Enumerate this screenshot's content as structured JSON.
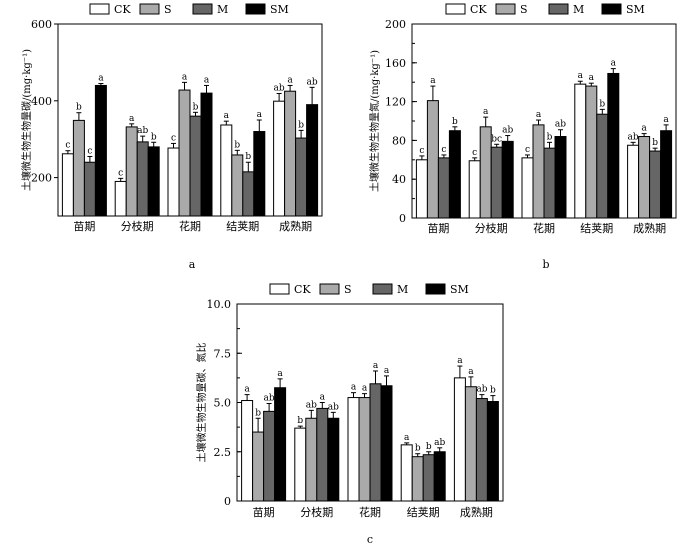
{
  "chart_data": [
    {
      "type": "bar",
      "panel_label": "a",
      "ylabel": "土壤微生物生物量碳/(mg·kg⁻¹)",
      "ylim": [
        100,
        600
      ],
      "yticks": [
        "200",
        "400",
        "600"
      ],
      "ytick_values": [
        200,
        400,
        600
      ],
      "categories": [
        "苗期",
        "分枝期",
        "花期",
        "结荚期",
        "成熟期"
      ],
      "series": [
        {
          "name": "CK",
          "color": "#ffffff",
          "values": [
            262,
            190,
            277,
            337,
            399
          ],
          "errors": [
            8,
            8,
            12,
            10,
            20
          ],
          "letters": [
            "c",
            "c",
            "c",
            "a",
            "ab"
          ]
        },
        {
          "name": "S",
          "color": "#aaaaaa",
          "values": [
            349,
            332,
            428,
            259,
            425
          ],
          "errors": [
            20,
            8,
            20,
            12,
            15
          ],
          "letters": [
            "b",
            "a",
            "a",
            "b",
            "a"
          ]
        },
        {
          "name": "M",
          "color": "#666666",
          "values": [
            240,
            293,
            360,
            215,
            303
          ],
          "errors": [
            15,
            15,
            10,
            25,
            20
          ],
          "letters": [
            "c",
            "ab",
            "b",
            "b",
            "b"
          ]
        },
        {
          "name": "SM",
          "color": "#000000",
          "values": [
            440,
            280,
            420,
            320,
            390
          ],
          "errors": [
            5,
            12,
            20,
            30,
            45
          ],
          "letters": [
            "a",
            "b",
            "a",
            "a",
            "ab"
          ]
        }
      ]
    },
    {
      "type": "bar",
      "panel_label": "b",
      "ylabel": "土壤微生物生物量氮/(mg·kg⁻¹)",
      "ylim": [
        0,
        200
      ],
      "yticks": [
        "0",
        "40",
        "80",
        "120",
        "160",
        "200"
      ],
      "ytick_values": [
        0,
        40,
        80,
        120,
        160,
        200
      ],
      "categories": [
        "苗期",
        "分枝期",
        "花期",
        "结荚期",
        "成熟期"
      ],
      "series": [
        {
          "name": "CK",
          "color": "#ffffff",
          "values": [
            60,
            59,
            62,
            138,
            75
          ],
          "errors": [
            4,
            3,
            3,
            3,
            3
          ],
          "letters": [
            "c",
            "c",
            "c",
            "a",
            "ab"
          ]
        },
        {
          "name": "S",
          "color": "#aaaaaa",
          "values": [
            121,
            94,
            96,
            136,
            84
          ],
          "errors": [
            15,
            10,
            5,
            3,
            3
          ],
          "letters": [
            "a",
            "a",
            "a",
            "a",
            "a"
          ]
        },
        {
          "name": "M",
          "color": "#666666",
          "values": [
            62,
            73,
            72,
            107,
            69
          ],
          "errors": [
            3,
            3,
            6,
            5,
            3
          ],
          "letters": [
            "c",
            "bc",
            "b",
            "b",
            "b"
          ]
        },
        {
          "name": "SM",
          "color": "#000000",
          "values": [
            90,
            79,
            84,
            149,
            90
          ],
          "errors": [
            4,
            6,
            7,
            5,
            6
          ],
          "letters": [
            "b",
            "ab",
            "ab",
            "a",
            "a"
          ]
        }
      ]
    },
    {
      "type": "bar",
      "panel_label": "c",
      "ylabel": "土壤微生物生物量碳、氮比",
      "ylim": [
        0,
        10
      ],
      "yticks": [
        "0",
        "2.5",
        "5.0",
        "7.5",
        "10.0"
      ],
      "ytick_values": [
        0,
        2.5,
        5,
        7.5,
        10
      ],
      "categories": [
        "苗期",
        "分枝期",
        "花期",
        "结荚期",
        "成熟期"
      ],
      "series": [
        {
          "name": "CK",
          "color": "#ffffff",
          "values": [
            5.1,
            3.7,
            5.25,
            2.85,
            6.25
          ],
          "errors": [
            0.3,
            0.1,
            0.25,
            0.1,
            0.6
          ],
          "letters": [
            "a",
            "b",
            "a",
            "a",
            "a"
          ]
        },
        {
          "name": "S",
          "color": "#aaaaaa",
          "values": [
            3.5,
            4.2,
            5.25,
            2.25,
            5.8
          ],
          "errors": [
            0.7,
            0.4,
            0.2,
            0.15,
            0.5
          ],
          "letters": [
            "b",
            "ab",
            "a",
            "b",
            "a"
          ]
        },
        {
          "name": "M",
          "color": "#666666",
          "values": [
            4.55,
            4.7,
            5.95,
            2.35,
            5.2
          ],
          "errors": [
            0.4,
            0.3,
            0.65,
            0.15,
            0.2
          ],
          "letters": [
            "ab",
            "a",
            "a",
            "b",
            "ab"
          ]
        },
        {
          "name": "SM",
          "color": "#000000",
          "values": [
            5.75,
            4.2,
            5.85,
            2.5,
            5.05
          ],
          "errors": [
            0.45,
            0.3,
            0.5,
            0.2,
            0.3
          ],
          "letters": [
            "a",
            "ab",
            "a",
            "ab",
            "b"
          ]
        }
      ]
    }
  ]
}
